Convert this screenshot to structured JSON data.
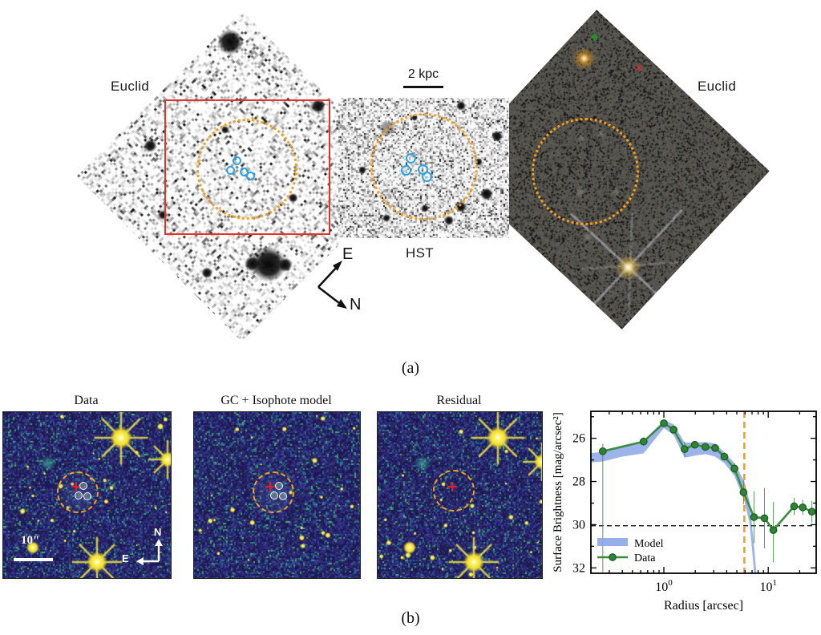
{
  "figure": {
    "caption_a": "(a)",
    "caption_b": "(b)"
  },
  "panel_a": {
    "telescope_labels": {
      "left": "Euclid",
      "middle": "HST",
      "right": "Euclid"
    },
    "scalebar": {
      "label": "2 kpc"
    },
    "compass": {
      "east": "E",
      "north": "N"
    },
    "colors": {
      "aperture_circle": "#f59e1c",
      "cutout_box": "#e5332a",
      "gc_candidate": "#2aa3e8"
    }
  },
  "panel_b": {
    "image_titles": [
      "Data",
      "GC + Isophote model",
      "Residual"
    ],
    "scalebar": {
      "label": "10\""
    },
    "compass": {
      "north": "N",
      "east": "E"
    },
    "colors": {
      "aperture_circle": "#f59e1c",
      "center_marker": "#e02020"
    }
  },
  "chart_data": {
    "type": "line",
    "title": "",
    "xlabel": "Radius [arcsec]",
    "ylabel": "Surface Brightness [mag/arcsec²]",
    "x_scale": "log",
    "xlim": [
      0.2,
      28.8
    ],
    "ylim_display": [
      32.25,
      24.75
    ],
    "yticks": [
      26,
      28,
      30,
      32
    ],
    "xticks": [
      {
        "value": 1,
        "label": "10^0"
      },
      {
        "value": 10,
        "label": "10^1"
      }
    ],
    "grid": false,
    "legend": {
      "position": "lower left"
    },
    "series": [
      {
        "name": "Model",
        "type": "band",
        "color": "#8ba6e9",
        "x": [
          0.2,
          0.26,
          0.4,
          0.64,
          1.0,
          1.24,
          1.58,
          1.98,
          2.5,
          3.1,
          3.8,
          4.75,
          5.9,
          6.6,
          7.0,
          7.4,
          7.8
        ],
        "y": [
          26.9,
          26.85,
          26.6,
          26.4,
          25.35,
          25.6,
          26.55,
          26.5,
          26.45,
          26.55,
          26.9,
          27.45,
          28.45,
          29.4,
          30.6,
          31.9,
          33.2
        ],
        "halfwidth": [
          0.22,
          0.22,
          0.25,
          0.3,
          0.18,
          0.25,
          0.35,
          0.3,
          0.28,
          0.3,
          0.25,
          0.3,
          0.45,
          0.5,
          0.55,
          0.6,
          0.65
        ]
      },
      {
        "name": "Data",
        "type": "line",
        "color": "#3c8c40",
        "marker_fill": "#2f8535",
        "x": [
          0.26,
          0.64,
          1.0,
          1.24,
          1.58,
          1.98,
          2.5,
          3.1,
          3.8,
          4.75,
          5.8,
          7.3,
          9.2,
          11.2,
          17.7,
          21.4,
          26.2
        ],
        "y": [
          26.6,
          26.15,
          25.3,
          25.6,
          26.5,
          26.3,
          26.4,
          26.45,
          26.85,
          27.4,
          28.5,
          29.65,
          29.7,
          30.25,
          29.15,
          29.2,
          29.4
        ],
        "yerr": [
          [
            0.35,
            5.6
          ],
          [
            0.2,
            0.2
          ],
          [
            0.12,
            0.12
          ],
          [
            0.12,
            0.12
          ],
          [
            0.35,
            0.35
          ],
          [
            0.15,
            0.15
          ],
          [
            0.12,
            0.12
          ],
          [
            0.12,
            0.12
          ],
          [
            0.18,
            0.18
          ],
          [
            0.25,
            0.25
          ],
          [
            0.55,
            0.55
          ],
          [
            1.2,
            1.2
          ],
          [
            1.4,
            1.4
          ],
          [
            1.3,
            1.5
          ],
          [
            0.4,
            0.4
          ],
          [
            0.35,
            0.35
          ],
          [
            0.5,
            0.5
          ]
        ]
      }
    ],
    "annotations": {
      "vline": {
        "x": 5.9,
        "color": "#f5a11c",
        "style": "dashed"
      },
      "hline": {
        "y": 30.05,
        "color": "#000000",
        "style": "dashed"
      }
    }
  }
}
